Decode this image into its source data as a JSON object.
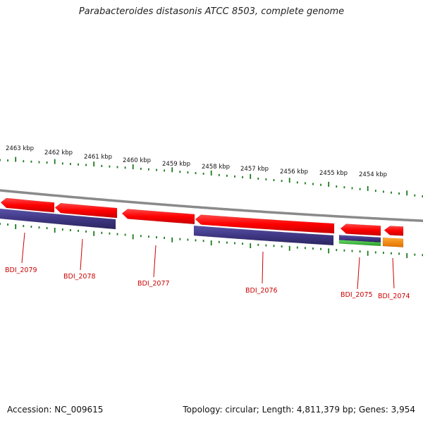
{
  "title": "Parabacteroides distasonis ATCC 8503, complete genome",
  "footer": {
    "accession": "Accession: NC_009615",
    "summary": "Topology: circular; Length: 4,811,379 bp; Genes: 3,954"
  },
  "scale_labels": [
    "2463 kbp",
    "2462 kbp",
    "2461 kbp",
    "2460 kbp",
    "2459 kbp",
    "2458 kbp",
    "2457 kbp",
    "2456 kbp",
    "2455 kbp",
    "2454 kbp"
  ],
  "colors": {
    "forward_cds": "#ff0000",
    "reverse_cds": "#3d3580",
    "green_feature": "#33bb33",
    "orange_feature": "#ff8800",
    "backbone": "#8a8a8a",
    "ticks": "#1a7a1a",
    "gene_label": "#cc0000"
  },
  "genes": [
    {
      "name": "BDI_2079"
    },
    {
      "name": "BDI_2078"
    },
    {
      "name": "BDI_2077"
    },
    {
      "name": "BDI_2076"
    },
    {
      "name": "BDI_2075"
    },
    {
      "name": "BDI_2074"
    }
  ]
}
